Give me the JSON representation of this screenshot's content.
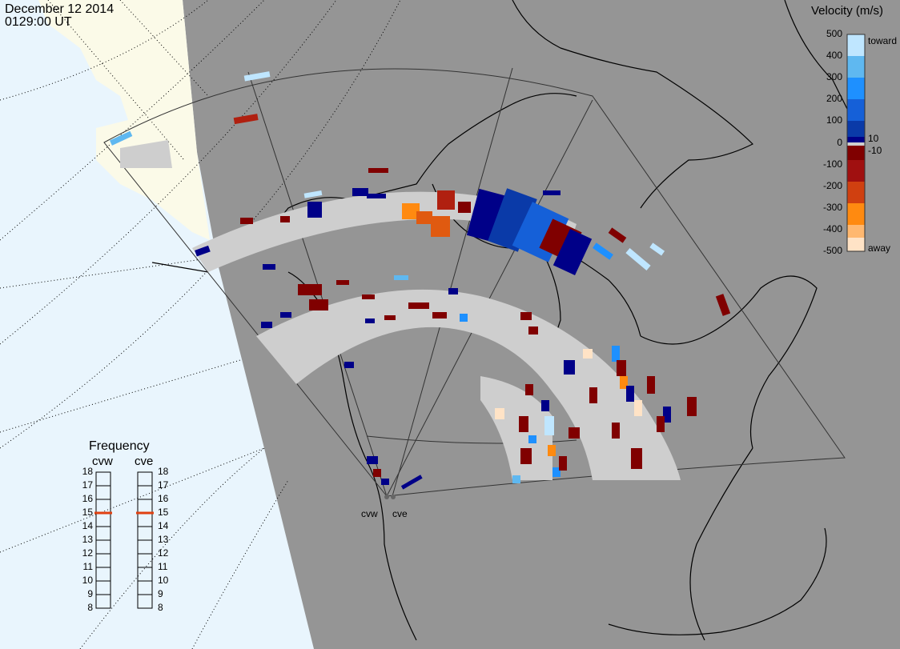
{
  "header": {
    "date": "December 12 2014",
    "time": "0129:00 UT"
  },
  "colorbar": {
    "title": "Velocity (m/s)",
    "ticks": [
      {
        "label": "500",
        "value": 500
      },
      {
        "label": "400",
        "value": 400
      },
      {
        "label": "300",
        "value": 300
      },
      {
        "label": "200",
        "value": 200
      },
      {
        "label": "100",
        "value": 100
      },
      {
        "label": "0",
        "value": 0
      },
      {
        "label": "-100",
        "value": -100
      },
      {
        "label": "-200",
        "value": -200
      },
      {
        "label": "-300",
        "value": -300
      },
      {
        "label": "-400",
        "value": -400
      },
      {
        "label": "-500",
        "value": -500
      }
    ],
    "side_labels": {
      "toward": "toward",
      "away": "away",
      "pos_threshold": "10",
      "neg_threshold": "-10"
    },
    "colors": [
      "#ffe3c6",
      "#ffb870",
      "#ff8a10",
      "#e05a10",
      "#b02010",
      "#800000",
      "#a9a9a9",
      "#000088",
      "#0a3aa8",
      "#1560d8",
      "#1e90ff",
      "#5fb8f0",
      "#bfe6ff"
    ]
  },
  "frequency": {
    "title": "Frequency",
    "radars": [
      {
        "name": "cvw",
        "value_mhz": 15
      },
      {
        "name": "cve",
        "value_mhz": 15
      }
    ],
    "scale": [
      18,
      17,
      16,
      15,
      14,
      13,
      12,
      11,
      10,
      9,
      8
    ],
    "marker_color": "#e04010"
  },
  "radars": [
    {
      "code": "cvw"
    },
    {
      "code": "cve"
    }
  ],
  "map_colors": {
    "daylight": "#e9f5fd",
    "night": "#959595",
    "land_day": "#fbfae8",
    "ground_scatter": "#cecece",
    "coast": "#000000"
  }
}
